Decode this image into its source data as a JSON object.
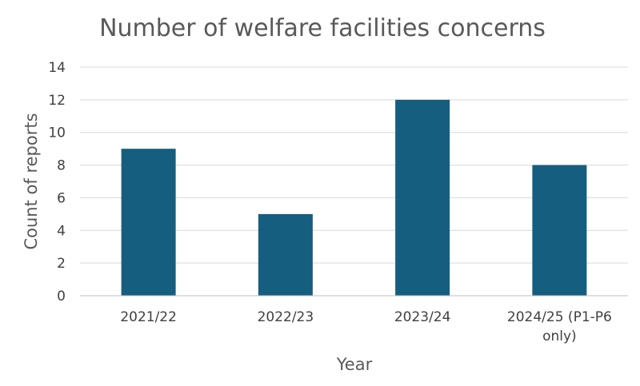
{
  "chart_data": {
    "type": "bar",
    "title": "Number of welfare facilities concerns",
    "xlabel": "Year",
    "ylabel": "Count of reports",
    "categories": [
      "2021/22",
      "2022/23",
      "2023/24",
      "2024/25 (P1-P6 only)"
    ],
    "category_lines": [
      [
        "2021/22"
      ],
      [
        "2022/23"
      ],
      [
        "2023/24"
      ],
      [
        "2024/25 (P1-P6",
        "only)"
      ]
    ],
    "values": [
      9,
      5,
      12,
      8
    ],
    "ylim": [
      0,
      14
    ],
    "yticks": [
      0,
      2,
      4,
      6,
      8,
      10,
      12,
      14
    ],
    "grid": true,
    "legend": "none",
    "colors": {
      "bar": "#165E80",
      "grid": "#d9d9d9",
      "axis": "#bfbfbf"
    }
  }
}
